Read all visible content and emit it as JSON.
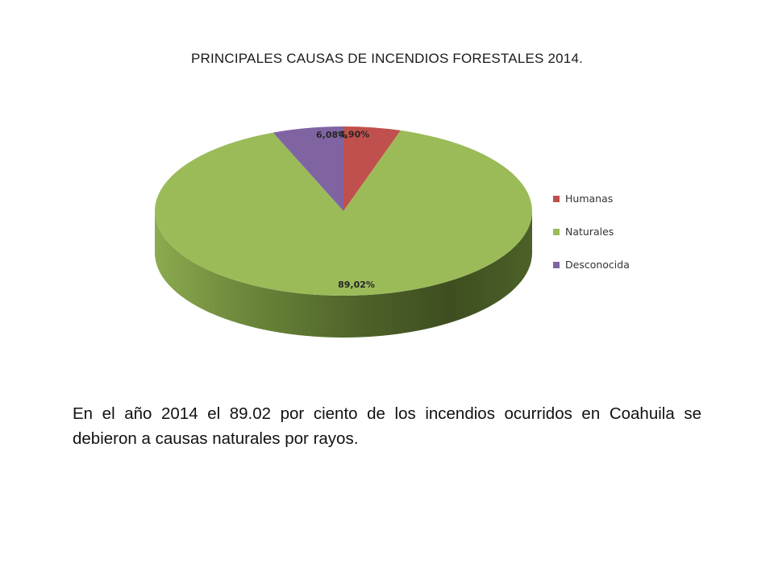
{
  "slide": {
    "title": "PRINCIPALES CAUSAS DE INCENDIOS FORESTALES 2014.",
    "body": "En el año 2014 el 89.02 por ciento de los incendios ocurridos en Coahuila se debieron a causas naturales por rayos."
  },
  "chart_data": {
    "type": "pie",
    "style": "3d",
    "title": "PRINCIPALES CAUSAS DE INCENDIOS FORESTALES 2014.",
    "categories": [
      "Humanas",
      "Naturales",
      "Desconocida"
    ],
    "values": [
      4.9,
      89.02,
      6.08
    ],
    "labels": [
      "4,90%",
      "89,02%",
      "6,08%"
    ],
    "colors": [
      "#c0504d",
      "#9bbb59",
      "#8064a2"
    ],
    "legend_position": "right"
  }
}
